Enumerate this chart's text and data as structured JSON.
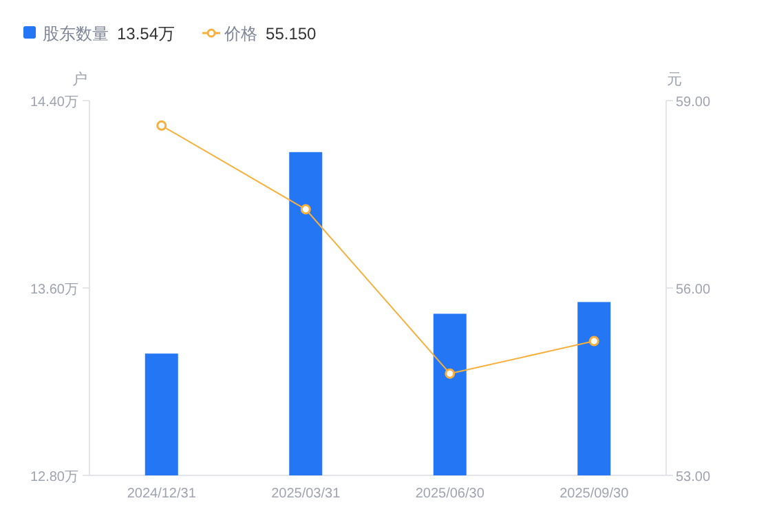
{
  "chart_data": {
    "type": "bar",
    "categories": [
      "2024/12/31",
      "2025/03/31",
      "2025/06/30",
      "2025/09/30"
    ],
    "series": [
      {
        "name": "股东数量",
        "color": "#2476f5",
        "values": [
          13.32,
          14.18,
          13.49,
          13.54
        ]
      },
      {
        "name": "价格",
        "type": "line",
        "axis": "y2",
        "color": "#f7b03c",
        "marker": "circle",
        "values": [
          58.6,
          57.26,
          54.63,
          55.15
        ]
      }
    ],
    "ylabel": "户",
    "y2label": "元",
    "ylim": [
      12.8,
      14.4
    ],
    "yticks": [
      {
        "value": 12.8,
        "label": "12.80万"
      },
      {
        "value": 13.6,
        "label": "13.60万"
      },
      {
        "value": 14.4,
        "label": "14.40万"
      }
    ],
    "y2lim": [
      53,
      59
    ],
    "y2ticks": [
      {
        "value": 53,
        "label": "53.00"
      },
      {
        "value": 56,
        "label": "56.00"
      },
      {
        "value": 59,
        "label": "59.00"
      }
    ],
    "legend": "top left",
    "annotations": [
      "13.54万",
      "55.150"
    ]
  }
}
